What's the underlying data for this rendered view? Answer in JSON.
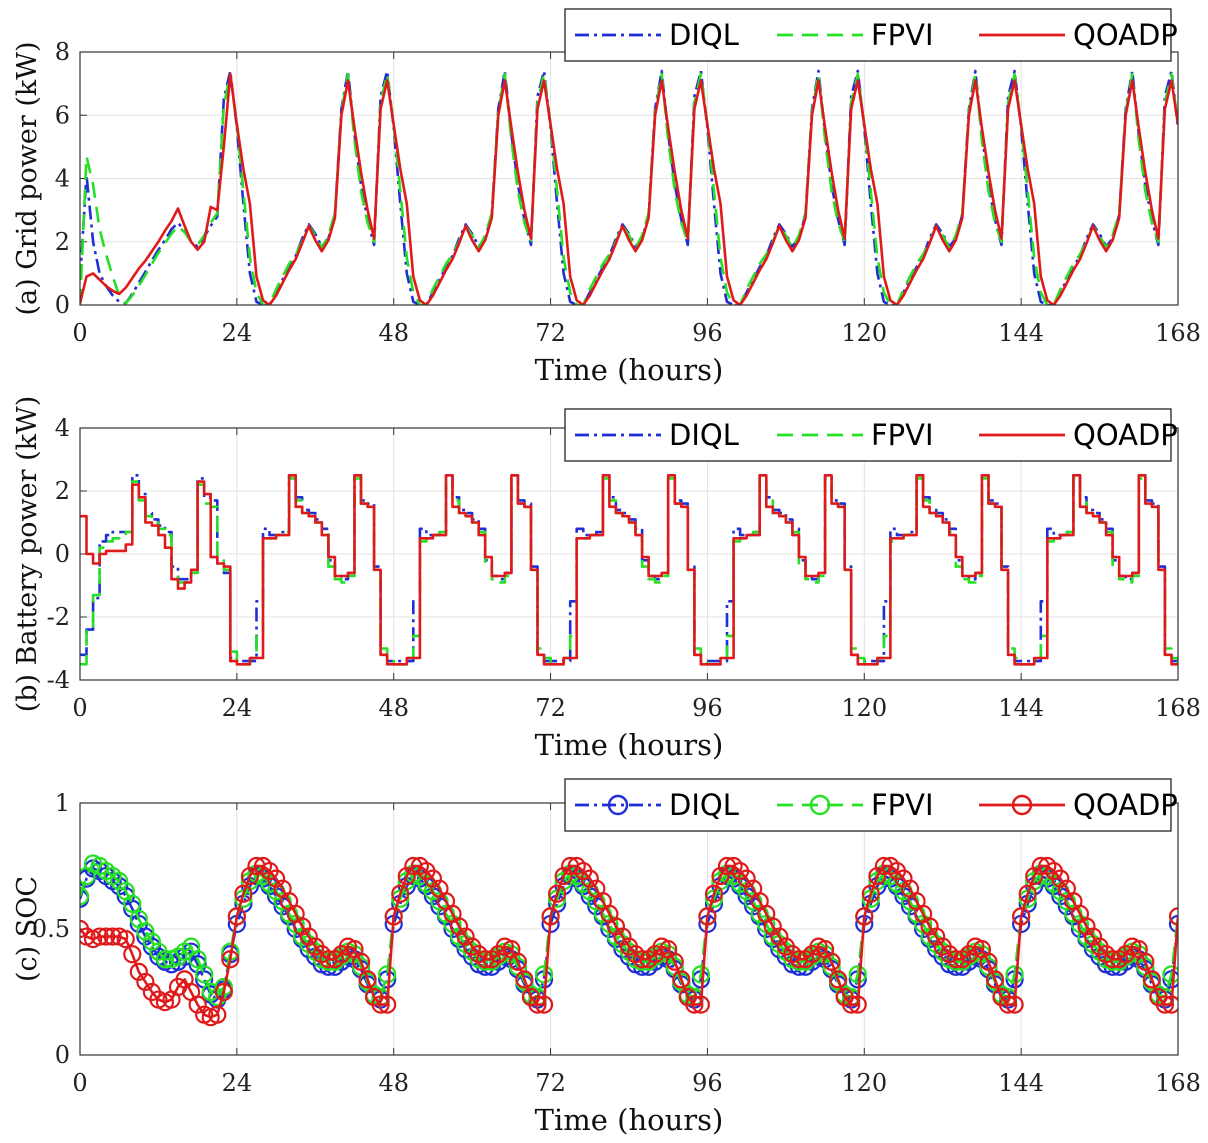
{
  "chart_data": [
    {
      "id": "a",
      "type": "line",
      "step": false,
      "xlabel": "Time (hours)",
      "ylabel": "(a)  Grid power (kW)",
      "xlim": [
        0,
        168
      ],
      "ylim": [
        0,
        8
      ],
      "xticks": [
        "0",
        "24",
        "48",
        "72",
        "96",
        "120",
        "144",
        "168"
      ],
      "yticks": [
        "0",
        "2",
        "4",
        "6",
        "8"
      ],
      "legend": [
        "DIQL",
        "FPVI",
        "QOADP"
      ],
      "legend_position": "top-right",
      "grid": true,
      "series": [
        {
          "name": "DIQL",
          "first_day": [
            0.8,
            4.1,
            2.0,
            1.0,
            0.6,
            0.3,
            0.1,
            0.05,
            0.35,
            0.7,
            1.05,
            1.4,
            1.75,
            2.05,
            2.4,
            2.6,
            2.35,
            2.0,
            1.85,
            2.15,
            2.5,
            2.8,
            6.5,
            7.4
          ],
          "day": [
            5.6,
            3.2,
            1.0,
            0.1,
            0.0,
            0.0,
            0.4,
            0.8,
            1.2,
            1.55,
            2.1,
            2.55,
            2.25,
            1.85,
            2.1,
            2.85,
            6.2,
            7.4,
            5.4,
            3.8,
            2.7,
            1.9,
            6.6,
            7.4
          ]
        },
        {
          "name": "FPVI",
          "first_day": [
            0.0,
            4.7,
            3.8,
            2.4,
            1.6,
            0.9,
            0.3,
            0.05,
            0.3,
            0.6,
            0.95,
            1.3,
            1.65,
            1.95,
            2.25,
            2.5,
            2.3,
            2.0,
            1.9,
            2.2,
            2.6,
            2.9,
            6.3,
            7.3
          ],
          "day": [
            5.7,
            3.6,
            1.5,
            0.4,
            0.0,
            0.0,
            0.5,
            0.9,
            1.3,
            1.6,
            2.0,
            2.5,
            2.2,
            1.8,
            2.2,
            2.9,
            6.1,
            7.3,
            5.2,
            3.6,
            2.6,
            2.0,
            6.4,
            7.3
          ]
        },
        {
          "name": "QOADP",
          "first_day": [
            0.05,
            0.9,
            1.0,
            0.8,
            0.6,
            0.45,
            0.35,
            0.55,
            0.85,
            1.15,
            1.4,
            1.7,
            2.0,
            2.35,
            2.65,
            3.05,
            2.5,
            2.0,
            1.75,
            2.0,
            3.1,
            3.0,
            5.0,
            7.3
          ],
          "day": [
            5.7,
            4.3,
            3.2,
            0.9,
            0.15,
            0.0,
            0.3,
            0.7,
            1.1,
            1.45,
            1.95,
            2.5,
            2.05,
            1.7,
            2.05,
            2.75,
            6.0,
            7.1,
            5.6,
            4.2,
            3.0,
            2.1,
            6.2,
            7.1
          ]
        }
      ]
    },
    {
      "id": "b",
      "type": "line",
      "step": true,
      "xlabel": "Time (hours)",
      "ylabel": "(b) Battery power (kW)",
      "xlim": [
        0,
        168
      ],
      "ylim": [
        -4,
        4
      ],
      "xticks": [
        "0",
        "24",
        "48",
        "72",
        "96",
        "120",
        "144",
        "168"
      ],
      "yticks": [
        "-4",
        "-2",
        "0",
        "2",
        "4"
      ],
      "legend": [
        "DIQL",
        "FPVI",
        "QOADP"
      ],
      "legend_position": "top-right",
      "grid": true,
      "series": [
        {
          "name": "DIQL",
          "first_day": [
            -3.2,
            -2.4,
            -1.4,
            0.4,
            0.6,
            0.7,
            0.7,
            0.7,
            2.5,
            1.9,
            1.3,
            1.1,
            0.9,
            0.7,
            -0.4,
            -0.8,
            -0.8,
            -0.5,
            2.4,
            1.8,
            1.7,
            -0.3,
            -0.6,
            -3.3
          ],
          "day": [
            -3.4,
            -3.4,
            -3.4,
            -1.5,
            0.8,
            0.6,
            0.6,
            0.7,
            2.5,
            1.8,
            1.4,
            1.3,
            1.1,
            0.8,
            -0.2,
            -0.7,
            -0.8,
            -0.6,
            2.5,
            1.7,
            1.6,
            -0.4,
            -3.2,
            -3.4
          ]
        },
        {
          "name": "FPVI",
          "first_day": [
            -3.5,
            -2.3,
            -1.3,
            0.2,
            0.4,
            0.5,
            0.6,
            0.7,
            2.3,
            1.7,
            1.2,
            1.0,
            0.8,
            0.6,
            -0.6,
            -0.9,
            -0.9,
            -0.6,
            2.2,
            1.6,
            1.5,
            -0.2,
            -0.5,
            -3.1
          ],
          "day": [
            -3.5,
            -3.5,
            -3.3,
            -2.6,
            0.4,
            0.5,
            0.6,
            0.7,
            2.4,
            1.7,
            1.3,
            1.2,
            1.0,
            0.7,
            -0.4,
            -0.8,
            -0.9,
            -0.7,
            2.4,
            1.6,
            1.5,
            -0.5,
            -3.0,
            -3.3
          ]
        },
        {
          "name": "QOADP",
          "first_day": [
            1.2,
            0.0,
            -0.3,
            0.0,
            0.1,
            0.1,
            0.1,
            0.3,
            2.2,
            1.8,
            1.0,
            0.9,
            0.6,
            0.2,
            -0.8,
            -1.1,
            -0.9,
            -0.5,
            2.3,
            1.9,
            -0.1,
            -0.3,
            -0.4,
            -3.4
          ],
          "day": [
            -3.5,
            -3.5,
            -3.3,
            -3.3,
            0.5,
            0.5,
            0.6,
            0.6,
            2.5,
            1.5,
            1.3,
            1.2,
            1.0,
            0.6,
            -0.1,
            -0.7,
            -0.7,
            -0.6,
            2.5,
            1.6,
            1.5,
            -0.5,
            -3.2,
            -3.5
          ]
        }
      ]
    },
    {
      "id": "c",
      "type": "line",
      "step": false,
      "markers": "circle",
      "xlabel": "Time (hours)",
      "ylabel": "(c) SOC",
      "xlim": [
        0,
        168
      ],
      "ylim": [
        0,
        1
      ],
      "xticks": [
        "0",
        "24",
        "48",
        "72",
        "96",
        "120",
        "144",
        "168"
      ],
      "yticks": [
        "0",
        "0.5",
        "1"
      ],
      "legend": [
        "DIQL",
        "FPVI",
        "QOADP"
      ],
      "legend_position": "top-right",
      "grid": true,
      "series": [
        {
          "name": "DIQL",
          "first_day": [
            0.62,
            0.7,
            0.74,
            0.73,
            0.71,
            0.69,
            0.67,
            0.63,
            0.58,
            0.52,
            0.47,
            0.43,
            0.39,
            0.37,
            0.36,
            0.37,
            0.39,
            0.41,
            0.36,
            0.3,
            0.24,
            0.22,
            0.26,
            0.4
          ],
          "day": [
            0.52,
            0.6,
            0.67,
            0.71,
            0.7,
            0.67,
            0.63,
            0.59,
            0.55,
            0.5,
            0.46,
            0.42,
            0.39,
            0.36,
            0.35,
            0.35,
            0.37,
            0.39,
            0.38,
            0.34,
            0.28,
            0.23,
            0.22,
            0.3
          ]
        },
        {
          "name": "FPVI",
          "first_day": [
            0.63,
            0.71,
            0.76,
            0.75,
            0.73,
            0.71,
            0.69,
            0.65,
            0.6,
            0.54,
            0.49,
            0.45,
            0.41,
            0.38,
            0.38,
            0.39,
            0.41,
            0.43,
            0.38,
            0.32,
            0.25,
            0.23,
            0.27,
            0.41
          ],
          "day": [
            0.55,
            0.62,
            0.69,
            0.72,
            0.71,
            0.68,
            0.65,
            0.61,
            0.56,
            0.52,
            0.47,
            0.44,
            0.41,
            0.38,
            0.37,
            0.37,
            0.39,
            0.41,
            0.4,
            0.35,
            0.29,
            0.24,
            0.23,
            0.32
          ]
        },
        {
          "name": "QOADP",
          "first_day": [
            0.5,
            0.47,
            0.46,
            0.47,
            0.47,
            0.47,
            0.47,
            0.46,
            0.4,
            0.33,
            0.29,
            0.25,
            0.22,
            0.21,
            0.22,
            0.27,
            0.3,
            0.25,
            0.2,
            0.16,
            0.15,
            0.16,
            0.25,
            0.38
          ],
          "day": [
            0.55,
            0.64,
            0.71,
            0.75,
            0.75,
            0.73,
            0.7,
            0.66,
            0.61,
            0.56,
            0.51,
            0.47,
            0.43,
            0.4,
            0.38,
            0.38,
            0.4,
            0.43,
            0.42,
            0.37,
            0.3,
            0.23,
            0.2,
            0.2
          ]
        }
      ]
    }
  ],
  "colors": {
    "DIQL": "#1f2fd6",
    "FPVI": "#25e025",
    "QOADP": "#e01a1a"
  }
}
